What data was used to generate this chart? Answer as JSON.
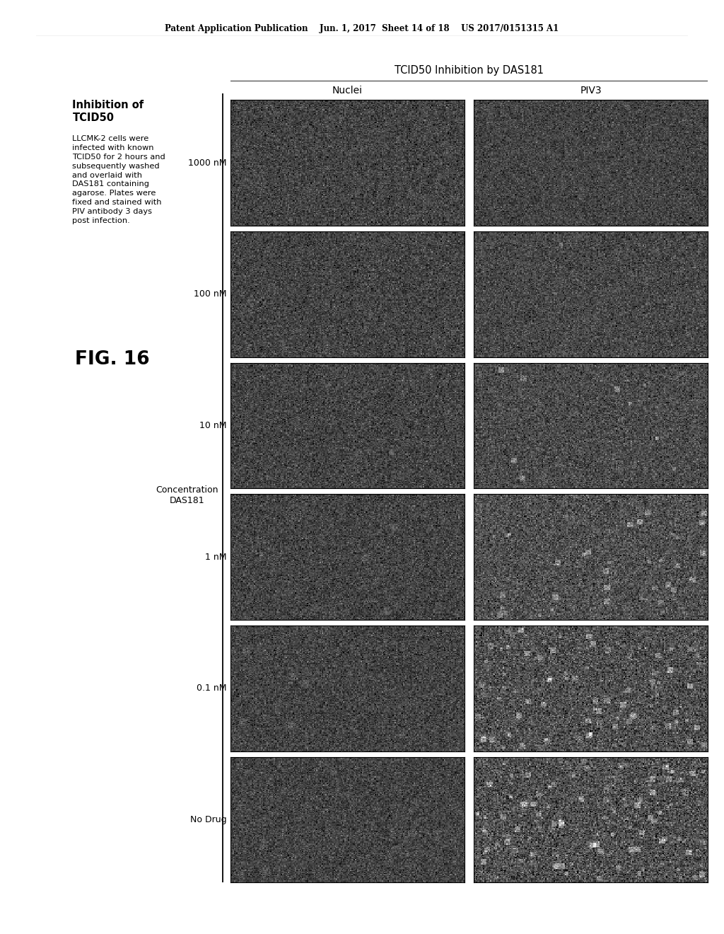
{
  "page_header": "Patent Application Publication    Jun. 1, 2017  Sheet 14 of 18    US 2017/0151315 A1",
  "title_bold": "Inhibition of\nTCID50",
  "description": "LLCMK-2 cells were\ninfected with known\nTCID50 for 2 hours and\nsubsequently washed\nand overlaid with\nDAS181 containing\nagarose. Plates were\nfixed and stained with\nPIV antibody 3 days\npost infection.",
  "fig_label": "FIG. 16",
  "grid_title": "TCID50 Inhibition by DAS181",
  "col_labels": [
    "Nuclei",
    "PIV3"
  ],
  "row_labels": [
    "1000 nM",
    "100 nM",
    "10 nM",
    "1 nM",
    "0.1 nM",
    "No Drug"
  ],
  "conc_label": "Concentration\nDAS181",
  "background_color": "#ffffff",
  "nuclei_base_gray": 68,
  "nuclei_noise_std": 18,
  "piv3_base_grays": [
    68,
    72,
    75,
    80,
    80,
    80
  ],
  "piv3_spot_counts": [
    0,
    4,
    15,
    60,
    120,
    200
  ],
  "piv3_noise_stds": [
    18,
    20,
    22,
    25,
    28,
    30
  ]
}
